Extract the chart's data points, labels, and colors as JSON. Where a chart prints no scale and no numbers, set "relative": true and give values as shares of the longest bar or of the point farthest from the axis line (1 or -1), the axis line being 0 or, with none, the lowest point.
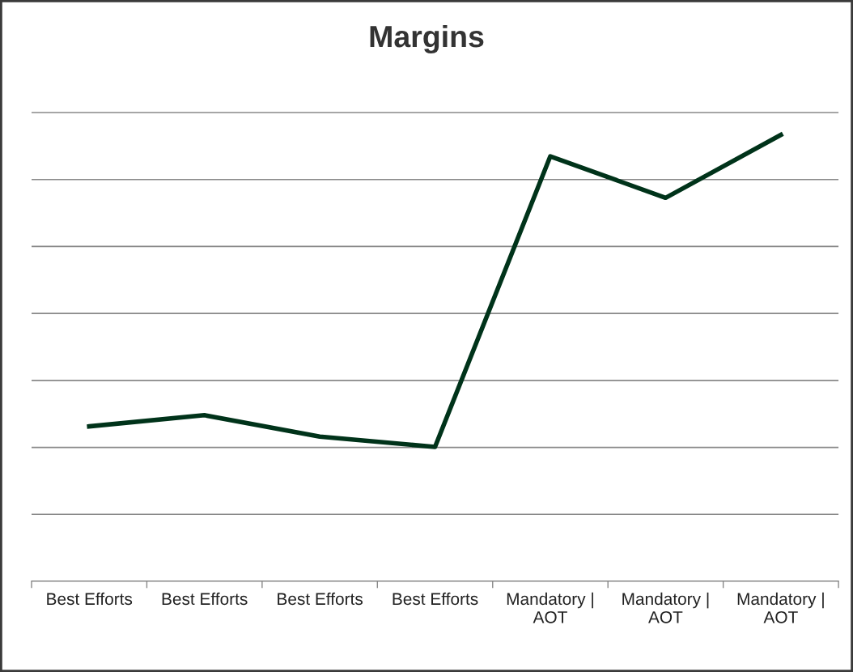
{
  "chart_data": {
    "type": "line",
    "title": "Margins",
    "relative": true,
    "categories": [
      "Best Efforts",
      "Best Efforts",
      "Best Efforts",
      "Best Efforts",
      "Mandatory |\nAOT",
      "Mandatory |\nAOT",
      "Mandatory |\nAOT"
    ],
    "series": [
      {
        "color": "#00331a",
        "values": [
          0.347,
          0.372,
          0.324,
          0.301,
          0.952,
          0.859,
          1.0
        ]
      }
    ],
    "grid": "y",
    "legend": false,
    "marker": "none",
    "line_style": "solid"
  }
}
